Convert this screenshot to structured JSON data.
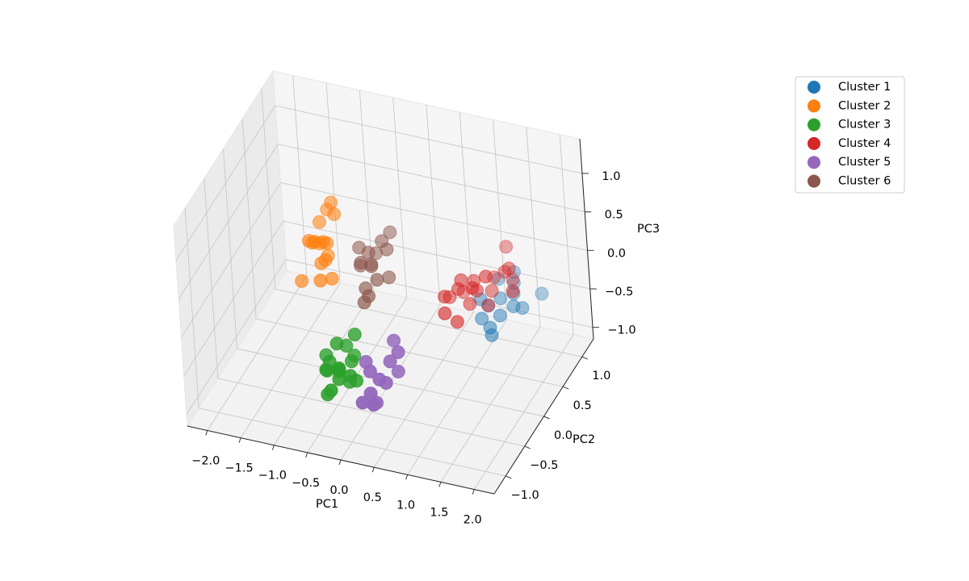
{
  "chart_data": {
    "type": "scatter3d",
    "xlabel": "PC1",
    "ylabel": "PC2",
    "zlabel": "PC3",
    "xlim": [
      -2.3,
      2.3
    ],
    "ylim": [
      -1.3,
      1.3
    ],
    "zlim": [
      -1.15,
      1.45
    ],
    "xticks": [
      {
        "value": -2,
        "label": "−2.0"
      },
      {
        "value": -1.5,
        "label": "−1.5"
      },
      {
        "value": -1,
        "label": "−1.0"
      },
      {
        "value": -0.5,
        "label": "−0.5"
      },
      {
        "value": 0,
        "label": "0.0"
      },
      {
        "value": 0.5,
        "label": "0.5"
      },
      {
        "value": 1,
        "label": "1.0"
      },
      {
        "value": 1.5,
        "label": "1.5"
      },
      {
        "value": 2,
        "label": "2.0"
      }
    ],
    "yticks": [
      {
        "value": -1,
        "label": "−1.0"
      },
      {
        "value": -0.5,
        "label": "−0.5"
      },
      {
        "value": 0,
        "label": "0.0"
      },
      {
        "value": 0.5,
        "label": "0.5"
      },
      {
        "value": 1,
        "label": "1.0"
      }
    ],
    "zticks": [
      {
        "value": -1,
        "label": "−1.0"
      },
      {
        "value": -0.5,
        "label": "−0.5"
      },
      {
        "value": 0,
        "label": "0.0"
      },
      {
        "value": 0.5,
        "label": "0.5"
      },
      {
        "value": 1,
        "label": "1.0"
      }
    ],
    "grid": true,
    "legend": "upper right",
    "series": [
      {
        "name": "Cluster 1",
        "color": "#1f77b4",
        "x": [
          1.39,
          1.25,
          1.55,
          1.45,
          1.3,
          1.6,
          1.2,
          1.5,
          1.35,
          1.7,
          1.15,
          1.48,
          1.85,
          1.4
        ],
        "y": [
          0.58,
          0.5,
          0.65,
          0.45,
          0.7,
          0.55,
          0.4,
          0.75,
          0.35,
          0.6,
          0.48,
          0.8,
          0.85,
          0.3
        ],
        "z": [
          -0.24,
          -0.3,
          -0.2,
          -0.35,
          -0.1,
          -0.28,
          -0.4,
          -0.15,
          -0.45,
          -0.32,
          -0.22,
          -0.05,
          -0.3,
          -0.5
        ]
      },
      {
        "name": "Cluster 2",
        "color": "#ff7f0e",
        "x": [
          -0.76,
          -0.85,
          -0.7,
          -0.9,
          -0.65,
          -0.8,
          -0.72,
          -0.95,
          -0.6,
          -0.78,
          -0.88,
          -0.68,
          -0.82,
          -0.74,
          -1.05,
          -0.7
        ],
        "y": [
          -0.18,
          -0.1,
          -0.25,
          -0.3,
          -0.05,
          -0.2,
          0.0,
          -0.15,
          -0.28,
          -0.35,
          -0.08,
          -0.22,
          0.05,
          -0.12,
          -0.3,
          -0.4
        ],
        "z": [
          0.67,
          0.85,
          0.5,
          0.75,
          0.95,
          0.4,
          1.05,
          0.6,
          0.3,
          0.8,
          0.55,
          0.7,
          0.9,
          0.45,
          0.2,
          0.35
        ]
      },
      {
        "name": "Cluster 3",
        "color": "#2ca02c",
        "x": [
          -0.3,
          -0.45,
          -0.15,
          -0.38,
          -0.22,
          -0.5,
          -0.1,
          -0.33,
          -0.28,
          -0.42,
          -0.18,
          -0.25,
          -0.55,
          -0.05,
          -0.35,
          -0.2,
          -0.4,
          -0.12
        ],
        "y": [
          -0.73,
          -0.8,
          -0.65,
          -0.6,
          -0.85,
          -0.7,
          -0.78,
          -0.9,
          -0.55,
          -0.75,
          -0.68,
          -0.82,
          -0.62,
          -0.72,
          -0.66,
          -0.5,
          -0.88,
          -0.58
        ],
        "z": [
          -0.5,
          -0.45,
          -0.4,
          -0.6,
          -0.35,
          -0.55,
          -0.48,
          -0.62,
          -0.3,
          -0.38,
          -0.65,
          -0.52,
          -0.42,
          -0.58,
          -0.2,
          -0.45,
          -0.7,
          -0.1
        ]
      },
      {
        "name": "Cluster 4",
        "color": "#d62728",
        "x": [
          1.2,
          1.0,
          1.35,
          0.85,
          1.5,
          1.1,
          1.25,
          0.95,
          1.4,
          1.3,
          1.05,
          1.6,
          1.15,
          0.9,
          1.45,
          1.28,
          1.7,
          1.02,
          1.55,
          0.8
        ],
        "y": [
          0.33,
          0.2,
          0.45,
          0.1,
          0.55,
          0.3,
          0.15,
          0.4,
          0.25,
          0.6,
          0.05,
          0.5,
          0.35,
          0.0,
          0.7,
          0.45,
          0.4,
          0.25,
          0.65,
          0.3
        ],
        "z": [
          0.02,
          0.1,
          -0.05,
          0.05,
          0.15,
          -0.15,
          0.2,
          -0.1,
          0.3,
          0.0,
          -0.2,
          0.25,
          0.12,
          -0.08,
          0.35,
          -0.25,
          0.05,
          0.18,
          -0.02,
          -0.12
        ]
      },
      {
        "name": "Cluster 5",
        "color": "#9467bd",
        "x": [
          0.39,
          0.3,
          0.5,
          0.2,
          0.45,
          0.6,
          0.35,
          0.25,
          0.55,
          0.4,
          0.15,
          0.48
        ],
        "y": [
          -0.86,
          -0.95,
          -0.75,
          -1.0,
          -0.8,
          -0.7,
          -0.9,
          -0.85,
          -0.65,
          -1.05,
          -0.78,
          -0.6
        ],
        "z": [
          -0.37,
          -0.5,
          -0.2,
          -0.6,
          -0.45,
          -0.1,
          -0.65,
          -0.3,
          -0.4,
          -0.55,
          -0.25,
          -0.05
        ]
      },
      {
        "name": "Cluster 6",
        "color": "#8c564b",
        "x": [
          -0.11,
          -0.2,
          0.0,
          -0.3,
          0.05,
          -0.15,
          -0.05,
          -0.25,
          0.1,
          -0.18,
          -0.08,
          -0.35,
          0.02,
          -0.12,
          -0.22
        ],
        "y": [
          -0.09,
          0.0,
          -0.15,
          -0.05,
          0.05,
          -0.2,
          0.1,
          -0.12,
          -0.02,
          0.15,
          -0.25,
          0.02,
          0.2,
          -0.3,
          0.08
        ],
        "z": [
          0.41,
          0.5,
          0.3,
          0.35,
          0.55,
          0.2,
          0.6,
          0.45,
          0.25,
          0.38,
          0.15,
          0.52,
          0.65,
          0.1,
          0.28
        ]
      }
    ]
  }
}
